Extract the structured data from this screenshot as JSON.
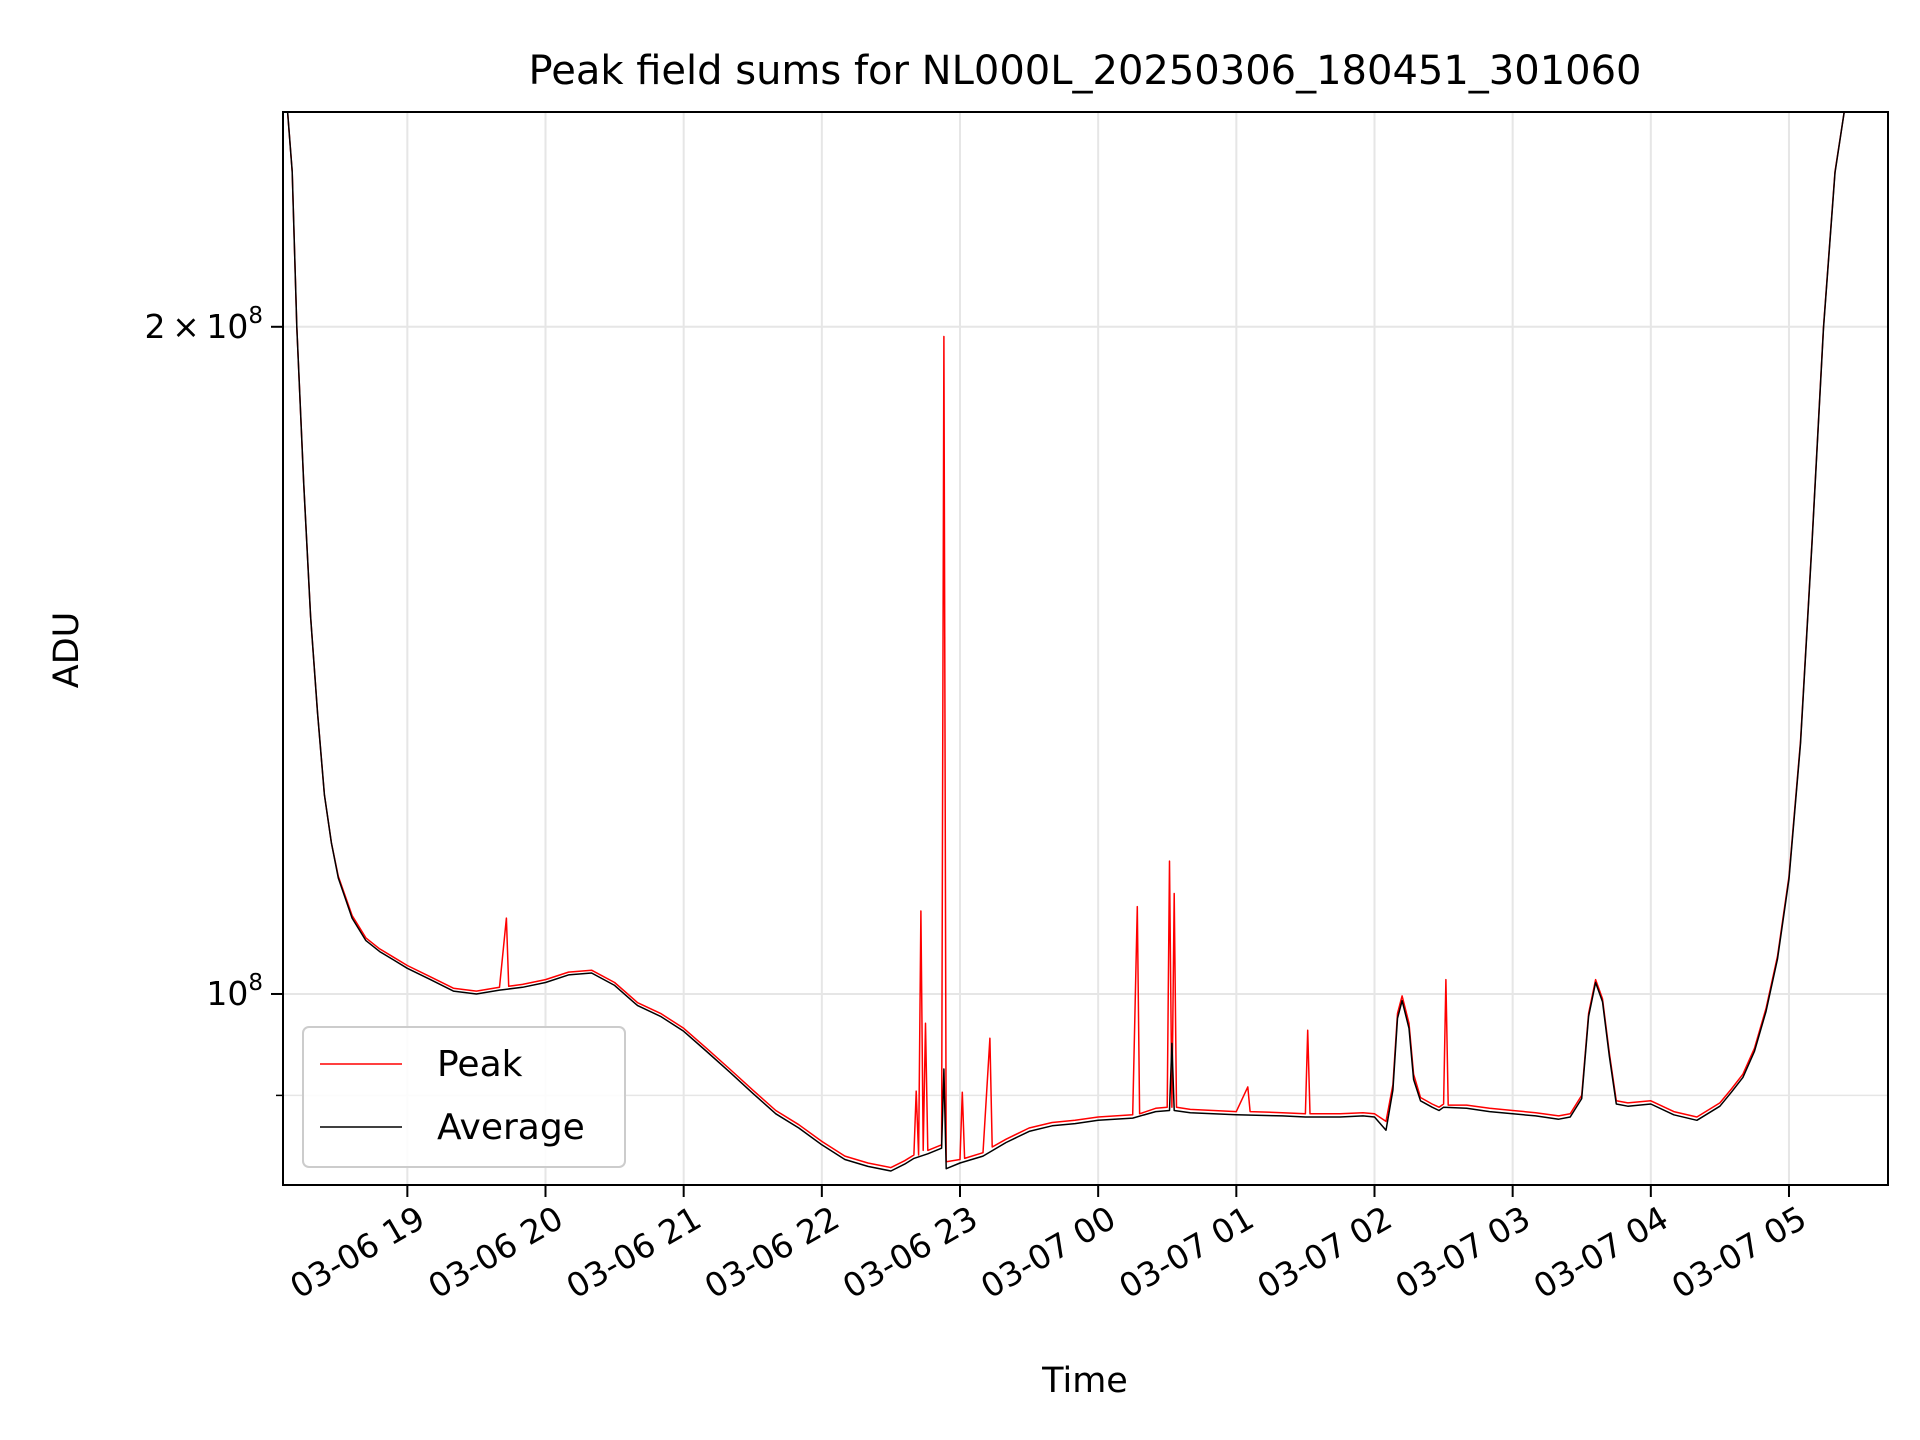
{
  "chart_data": {
    "type": "line",
    "title": "Peak field sums for NL000L_20250306_180451_301060",
    "xlabel": "Time",
    "ylabel": "ADU",
    "y_scale": "log",
    "ylim": [
      82000000,
      250000000
    ],
    "xlim": [
      "2025-03-06 18:06",
      "2025-03-07 05:43"
    ],
    "grid": true,
    "legend_placement": "lower-left",
    "x_ticks": [
      {
        "t": "2025-03-06 19:00",
        "label": "03-06 19"
      },
      {
        "t": "2025-03-06 20:00",
        "label": "03-06 20"
      },
      {
        "t": "2025-03-06 21:00",
        "label": "03-06 21"
      },
      {
        "t": "2025-03-06 22:00",
        "label": "03-06 22"
      },
      {
        "t": "2025-03-06 23:00",
        "label": "03-06 23"
      },
      {
        "t": "2025-03-07 00:00",
        "label": "03-07 00"
      },
      {
        "t": "2025-03-07 01:00",
        "label": "03-07 01"
      },
      {
        "t": "2025-03-07 02:00",
        "label": "03-07 02"
      },
      {
        "t": "2025-03-07 03:00",
        "label": "03-07 03"
      },
      {
        "t": "2025-03-07 04:00",
        "label": "03-07 04"
      },
      {
        "t": "2025-03-07 05:00",
        "label": "03-07 05"
      }
    ],
    "y_ticks": [
      {
        "value": 100000000,
        "base": "10",
        "exp": "8"
      },
      {
        "value": 200000000,
        "mantissa": "2",
        "base": "10",
        "exp": "8"
      }
    ],
    "y_minor_ticks": [
      90000000
    ],
    "series": [
      {
        "name": "Peak",
        "color": "#ff0000",
        "points": [
          [
            "2025-03-06 18:08",
            250000000
          ],
          [
            "2025-03-06 18:10",
            235000000
          ],
          [
            "2025-03-06 18:12",
            200000000
          ],
          [
            "2025-03-06 18:15",
            170000000
          ],
          [
            "2025-03-06 18:18",
            148000000
          ],
          [
            "2025-03-06 18:21",
            134000000
          ],
          [
            "2025-03-06 18:24",
            123000000
          ],
          [
            "2025-03-06 18:27",
            117000000
          ],
          [
            "2025-03-06 18:30",
            113000000
          ],
          [
            "2025-03-06 18:36",
            108500000
          ],
          [
            "2025-03-06 18:42",
            106000000
          ],
          [
            "2025-03-06 18:48",
            104800000
          ],
          [
            "2025-03-06 18:54",
            103900000
          ],
          [
            "2025-03-06 19:00",
            103000000
          ],
          [
            "2025-03-06 19:10",
            101800000
          ],
          [
            "2025-03-06 19:20",
            100600000
          ],
          [
            "2025-03-06 19:30",
            100300000
          ],
          [
            "2025-03-06 19:40",
            100700000
          ],
          [
            "2025-03-06 19:43",
            108200000
          ],
          [
            "2025-03-06 19:44",
            100800000
          ],
          [
            "2025-03-06 19:50",
            101000000
          ],
          [
            "2025-03-06 20:00",
            101500000
          ],
          [
            "2025-03-06 20:10",
            102300000
          ],
          [
            "2025-03-06 20:20",
            102500000
          ],
          [
            "2025-03-06 20:30",
            101200000
          ],
          [
            "2025-03-06 20:40",
            99100000
          ],
          [
            "2025-03-06 20:50",
            98000000
          ],
          [
            "2025-03-06 21:00",
            96500000
          ],
          [
            "2025-03-06 21:10",
            94500000
          ],
          [
            "2025-03-06 21:20",
            92500000
          ],
          [
            "2025-03-06 21:30",
            90500000
          ],
          [
            "2025-03-06 21:40",
            88600000
          ],
          [
            "2025-03-06 21:50",
            87300000
          ],
          [
            "2025-03-06 22:00",
            85800000
          ],
          [
            "2025-03-06 22:10",
            84500000
          ],
          [
            "2025-03-06 22:20",
            83900000
          ],
          [
            "2025-03-06 22:30",
            83500000
          ],
          [
            "2025-03-06 22:36",
            84100000
          ],
          [
            "2025-03-06 22:40",
            84600000
          ],
          [
            "2025-03-06 22:41",
            90400000
          ],
          [
            "2025-03-06 22:42",
            84600000
          ],
          [
            "2025-03-06 22:43",
            109000000
          ],
          [
            "2025-03-06 22:44",
            85000000
          ],
          [
            "2025-03-06 22:45",
            97000000
          ],
          [
            "2025-03-06 22:46",
            85000000
          ],
          [
            "2025-03-06 22:52",
            85500000
          ],
          [
            "2025-03-06 22:53",
            198000000
          ],
          [
            "2025-03-06 22:54",
            84000000
          ],
          [
            "2025-03-06 23:00",
            84200000
          ],
          [
            "2025-03-06 23:01",
            90300000
          ],
          [
            "2025-03-06 23:02",
            84300000
          ],
          [
            "2025-03-06 23:10",
            84800000
          ],
          [
            "2025-03-06 23:13",
            95500000
          ],
          [
            "2025-03-06 23:14",
            85300000
          ],
          [
            "2025-03-06 23:20",
            86000000
          ],
          [
            "2025-03-06 23:30",
            87000000
          ],
          [
            "2025-03-06 23:40",
            87500000
          ],
          [
            "2025-03-06 23:50",
            87700000
          ],
          [
            "2025-03-07 00:00",
            88000000
          ],
          [
            "2025-03-07 00:15",
            88200000
          ],
          [
            "2025-03-07 00:17",
            109500000
          ],
          [
            "2025-03-07 00:18",
            88300000
          ],
          [
            "2025-03-07 00:25",
            88800000
          ],
          [
            "2025-03-07 00:30",
            88900000
          ],
          [
            "2025-03-07 00:31",
            114800000
          ],
          [
            "2025-03-07 00:32",
            88900000
          ],
          [
            "2025-03-07 00:33",
            111000000
          ],
          [
            "2025-03-07 00:34",
            88900000
          ],
          [
            "2025-03-07 00:40",
            88700000
          ],
          [
            "2025-03-07 00:50",
            88600000
          ],
          [
            "2025-03-07 01:00",
            88500000
          ],
          [
            "2025-03-07 01:05",
            90800000
          ],
          [
            "2025-03-07 01:06",
            88500000
          ],
          [
            "2025-03-07 01:20",
            88400000
          ],
          [
            "2025-03-07 01:30",
            88300000
          ],
          [
            "2025-03-07 01:31",
            96300000
          ],
          [
            "2025-03-07 01:32",
            88300000
          ],
          [
            "2025-03-07 01:45",
            88300000
          ],
          [
            "2025-03-07 01:55",
            88400000
          ],
          [
            "2025-03-07 02:00",
            88300000
          ],
          [
            "2025-03-07 02:05",
            87600000
          ],
          [
            "2025-03-07 02:08",
            91000000
          ],
          [
            "2025-03-07 02:10",
            98000000
          ],
          [
            "2025-03-07 02:12",
            99800000
          ],
          [
            "2025-03-07 02:15",
            97000000
          ],
          [
            "2025-03-07 02:17",
            92000000
          ],
          [
            "2025-03-07 02:20",
            89800000
          ],
          [
            "2025-03-07 02:25",
            89200000
          ],
          [
            "2025-03-07 02:28",
            88900000
          ],
          [
            "2025-03-07 02:30",
            89200000
          ],
          [
            "2025-03-07 02:31",
            101500000
          ],
          [
            "2025-03-07 02:32",
            89100000
          ],
          [
            "2025-03-07 02:40",
            89100000
          ],
          [
            "2025-03-07 02:50",
            88800000
          ],
          [
            "2025-03-07 03:00",
            88600000
          ],
          [
            "2025-03-07 03:10",
            88400000
          ],
          [
            "2025-03-07 03:20",
            88100000
          ],
          [
            "2025-03-07 03:25",
            88300000
          ],
          [
            "2025-03-07 03:30",
            90000000
          ],
          [
            "2025-03-07 03:33",
            98000000
          ],
          [
            "2025-03-07 03:36",
            101500000
          ],
          [
            "2025-03-07 03:39",
            99500000
          ],
          [
            "2025-03-07 03:42",
            94000000
          ],
          [
            "2025-03-07 03:45",
            89500000
          ],
          [
            "2025-03-07 03:50",
            89300000
          ],
          [
            "2025-03-07 04:00",
            89500000
          ],
          [
            "2025-03-07 04:10",
            88500000
          ],
          [
            "2025-03-07 04:20",
            88000000
          ],
          [
            "2025-03-07 04:30",
            89300000
          ],
          [
            "2025-03-07 04:35",
            90600000
          ],
          [
            "2025-03-07 04:40",
            92000000
          ],
          [
            "2025-03-07 04:45",
            94500000
          ],
          [
            "2025-03-07 04:50",
            98500000
          ],
          [
            "2025-03-07 04:55",
            104000000
          ],
          [
            "2025-03-07 05:00",
            113000000
          ],
          [
            "2025-03-07 05:05",
            130000000
          ],
          [
            "2025-03-07 05:10",
            160000000
          ],
          [
            "2025-03-07 05:15",
            200000000
          ],
          [
            "2025-03-07 05:20",
            235000000
          ],
          [
            "2025-03-07 05:24",
            250000000
          ]
        ]
      },
      {
        "name": "Average",
        "color": "#000000",
        "points": [
          [
            "2025-03-06 18:08",
            250000000
          ],
          [
            "2025-03-06 18:10",
            235000000
          ],
          [
            "2025-03-06 18:12",
            200000000
          ],
          [
            "2025-03-06 18:15",
            170000000
          ],
          [
            "2025-03-06 18:18",
            148000000
          ],
          [
            "2025-03-06 18:21",
            134000000
          ],
          [
            "2025-03-06 18:24",
            123000000
          ],
          [
            "2025-03-06 18:27",
            117000000
          ],
          [
            "2025-03-06 18:30",
            112800000
          ],
          [
            "2025-03-06 18:36",
            108200000
          ],
          [
            "2025-03-06 18:42",
            105700000
          ],
          [
            "2025-03-06 18:48",
            104500000
          ],
          [
            "2025-03-06 18:54",
            103600000
          ],
          [
            "2025-03-06 19:00",
            102700000
          ],
          [
            "2025-03-06 19:10",
            101500000
          ],
          [
            "2025-03-06 19:20",
            100300000
          ],
          [
            "2025-03-06 19:30",
            100000000
          ],
          [
            "2025-03-06 19:40",
            100400000
          ],
          [
            "2025-03-06 19:50",
            100700000
          ],
          [
            "2025-03-06 20:00",
            101200000
          ],
          [
            "2025-03-06 20:10",
            102000000
          ],
          [
            "2025-03-06 20:20",
            102200000
          ],
          [
            "2025-03-06 20:30",
            100900000
          ],
          [
            "2025-03-06 20:40",
            98800000
          ],
          [
            "2025-03-06 20:50",
            97700000
          ],
          [
            "2025-03-06 21:00",
            96200000
          ],
          [
            "2025-03-06 21:10",
            94200000
          ],
          [
            "2025-03-06 21:20",
            92200000
          ],
          [
            "2025-03-06 21:30",
            90200000
          ],
          [
            "2025-03-06 21:40",
            88300000
          ],
          [
            "2025-03-06 21:50",
            87000000
          ],
          [
            "2025-03-06 22:00",
            85500000
          ],
          [
            "2025-03-06 22:10",
            84200000
          ],
          [
            "2025-03-06 22:20",
            83600000
          ],
          [
            "2025-03-06 22:30",
            83200000
          ],
          [
            "2025-03-06 22:36",
            83800000
          ],
          [
            "2025-03-06 22:40",
            84300000
          ],
          [
            "2025-03-06 22:46",
            84700000
          ],
          [
            "2025-03-06 22:52",
            85200000
          ],
          [
            "2025-03-06 22:53",
            92500000
          ],
          [
            "2025-03-06 22:54",
            83400000
          ],
          [
            "2025-03-06 23:00",
            83900000
          ],
          [
            "2025-03-06 23:10",
            84500000
          ],
          [
            "2025-03-06 23:20",
            85700000
          ],
          [
            "2025-03-06 23:30",
            86700000
          ],
          [
            "2025-03-06 23:40",
            87200000
          ],
          [
            "2025-03-06 23:50",
            87400000
          ],
          [
            "2025-03-07 00:00",
            87700000
          ],
          [
            "2025-03-07 00:15",
            87900000
          ],
          [
            "2025-03-07 00:25",
            88500000
          ],
          [
            "2025-03-07 00:31",
            88600000
          ],
          [
            "2025-03-07 00:32",
            95000000
          ],
          [
            "2025-03-07 00:33",
            88600000
          ],
          [
            "2025-03-07 00:40",
            88400000
          ],
          [
            "2025-03-07 00:50",
            88300000
          ],
          [
            "2025-03-07 01:00",
            88200000
          ],
          [
            "2025-03-07 01:20",
            88100000
          ],
          [
            "2025-03-07 01:30",
            88000000
          ],
          [
            "2025-03-07 01:45",
            88000000
          ],
          [
            "2025-03-07 01:55",
            88100000
          ],
          [
            "2025-03-07 02:00",
            88000000
          ],
          [
            "2025-03-07 02:05",
            86800000
          ],
          [
            "2025-03-07 02:08",
            90500000
          ],
          [
            "2025-03-07 02:10",
            97500000
          ],
          [
            "2025-03-07 02:12",
            99300000
          ],
          [
            "2025-03-07 02:15",
            96500000
          ],
          [
            "2025-03-07 02:17",
            91500000
          ],
          [
            "2025-03-07 02:20",
            89500000
          ],
          [
            "2025-03-07 02:25",
            88900000
          ],
          [
            "2025-03-07 02:28",
            88600000
          ],
          [
            "2025-03-07 02:30",
            88900000
          ],
          [
            "2025-03-07 02:40",
            88800000
          ],
          [
            "2025-03-07 02:50",
            88500000
          ],
          [
            "2025-03-07 03:00",
            88300000
          ],
          [
            "2025-03-07 03:10",
            88100000
          ],
          [
            "2025-03-07 03:20",
            87800000
          ],
          [
            "2025-03-07 03:25",
            88000000
          ],
          [
            "2025-03-07 03:30",
            89700000
          ],
          [
            "2025-03-07 03:33",
            97700000
          ],
          [
            "2025-03-07 03:36",
            101200000
          ],
          [
            "2025-03-07 03:39",
            99200000
          ],
          [
            "2025-03-07 03:42",
            93700000
          ],
          [
            "2025-03-07 03:45",
            89200000
          ],
          [
            "2025-03-07 03:50",
            89000000
          ],
          [
            "2025-03-07 04:00",
            89200000
          ],
          [
            "2025-03-07 04:10",
            88200000
          ],
          [
            "2025-03-07 04:20",
            87700000
          ],
          [
            "2025-03-07 04:30",
            89000000
          ],
          [
            "2025-03-07 04:35",
            90300000
          ],
          [
            "2025-03-07 04:40",
            91700000
          ],
          [
            "2025-03-07 04:45",
            94200000
          ],
          [
            "2025-03-07 04:50",
            98200000
          ],
          [
            "2025-03-07 04:55",
            103700000
          ],
          [
            "2025-03-07 05:00",
            112700000
          ],
          [
            "2025-03-07 05:05",
            129700000
          ],
          [
            "2025-03-07 05:10",
            159700000
          ],
          [
            "2025-03-07 05:15",
            199700000
          ],
          [
            "2025-03-07 05:20",
            234700000
          ],
          [
            "2025-03-07 05:24",
            250000000
          ]
        ]
      }
    ]
  },
  "colors": {
    "background": "#ffffff",
    "grid": "#e6e6e6",
    "axis": "#000000",
    "legend_border": "#cccccc"
  }
}
